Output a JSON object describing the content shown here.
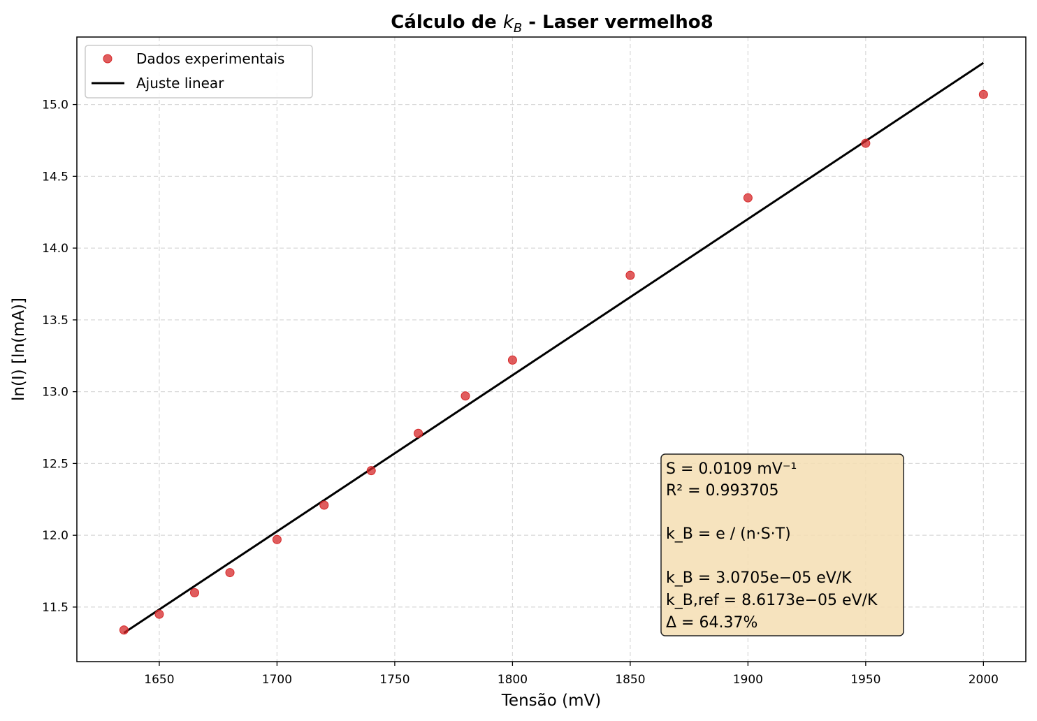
{
  "chart_data": {
    "type": "scatter",
    "title": "Cálculo de k_B - Laser vermelho8",
    "title_parts": {
      "pre": "Cálculo de ",
      "k": "k",
      "sub": "B",
      "post": " - Laser vermelho8"
    },
    "xlabel": "Tensão (mV)",
    "ylabel": "ln(I) [ln(mA)]",
    "xlim": [
      1615,
      2018
    ],
    "ylim": [
      11.12,
      15.47
    ],
    "xticks": [
      1650,
      1700,
      1750,
      1800,
      1850,
      1900,
      1950,
      2000
    ],
    "yticks": [
      11.5,
      12.0,
      12.5,
      13.0,
      13.5,
      14.0,
      14.5,
      15.0
    ],
    "grid": true,
    "legend_position": "top-left",
    "series": [
      {
        "name": "Dados experimentais",
        "kind": "scatter",
        "color": "#d62728",
        "x": [
          1635,
          1650,
          1665,
          1680,
          1700,
          1720,
          1740,
          1760,
          1780,
          1800,
          1850,
          1900,
          1950,
          2000
        ],
        "y": [
          11.34,
          11.45,
          11.6,
          11.74,
          11.97,
          12.21,
          12.45,
          12.71,
          12.97,
          13.22,
          13.81,
          14.35,
          14.73,
          15.07
        ]
      },
      {
        "name": "Ajuste linear",
        "kind": "line",
        "color": "#000000",
        "x": [
          1635,
          2000
        ],
        "y": [
          11.32,
          15.29
        ]
      }
    ],
    "annotation_box": {
      "background": "#f5deb3",
      "lines": [
        "S = 0.0109  mV⁻¹",
        "R² = 0.993705",
        "",
        "k_B = e / (n·S·T)",
        "",
        "k_B = 3.0705e−05  eV/K",
        "k_B,ref = 8.6173e−05  eV/K",
        "Δ = 64.37%"
      ]
    }
  }
}
